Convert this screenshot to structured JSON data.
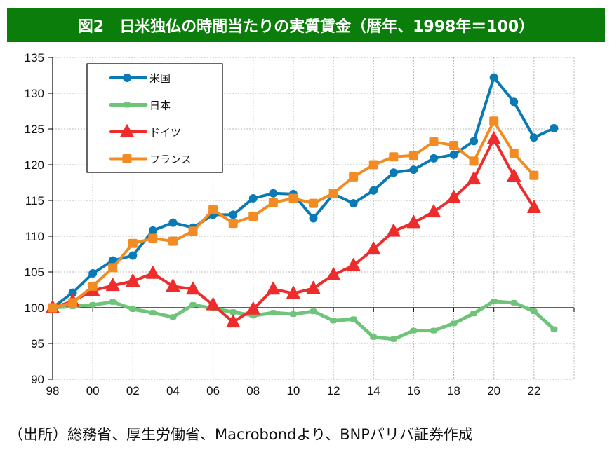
{
  "title": "図2　日米独仏の時間当たりの実質賃金（暦年、1998年＝100）",
  "source": "（出所）総務省、厚生労働省、Macrobondより、BNPパリバ証券作成",
  "colors": {
    "title_bg": "#0a7d0a",
    "us": "#0a7ab5",
    "japan": "#6fc47a",
    "germany": "#ee2c2c",
    "france": "#f28c22"
  },
  "chart_data": {
    "type": "line",
    "title": "図2　日米独仏の時間当たりの実質賃金（暦年、1998年＝100）",
    "xlabel": "",
    "ylabel": "",
    "xlim": [
      1998,
      2024
    ],
    "ylim": [
      90,
      135
    ],
    "grid": true,
    "legend_position": "top-left",
    "x_ticks": [
      "98",
      "00",
      "02",
      "04",
      "06",
      "08",
      "10",
      "12",
      "14",
      "16",
      "18",
      "20",
      "22"
    ],
    "y_ticks": [
      "90",
      "95",
      "100",
      "105",
      "110",
      "115",
      "120",
      "125",
      "130",
      "135"
    ],
    "x": [
      1998,
      1999,
      2000,
      2001,
      2002,
      2003,
      2004,
      2005,
      2006,
      2007,
      2008,
      2009,
      2010,
      2011,
      2012,
      2013,
      2014,
      2015,
      2016,
      2017,
      2018,
      2019,
      2020,
      2021,
      2022,
      2023
    ],
    "series": [
      {
        "name": "米国",
        "key": "us",
        "marker": "circle",
        "values": [
          100.0,
          102.1,
          104.8,
          106.6,
          107.3,
          110.8,
          111.9,
          111.2,
          113.0,
          113.0,
          115.3,
          116.0,
          115.9,
          112.5,
          115.9,
          114.6,
          116.4,
          118.9,
          119.3,
          120.9,
          121.4,
          123.3,
          132.2,
          128.8,
          123.8,
          125.1
        ]
      },
      {
        "name": "日本",
        "key": "japan",
        "marker": "bar",
        "values": [
          100.0,
          100.2,
          100.4,
          100.8,
          99.8,
          99.3,
          98.7,
          100.4,
          99.9,
          99.4,
          98.9,
          99.3,
          99.1,
          99.5,
          98.2,
          98.4,
          95.9,
          95.6,
          96.8,
          96.8,
          97.8,
          99.2,
          100.9,
          100.7,
          99.5,
          97.0
        ]
      },
      {
        "name": "ドイツ",
        "key": "germany",
        "marker": "triangle",
        "values": [
          100.0,
          100.9,
          102.4,
          103.1,
          103.7,
          104.8,
          103.0,
          102.6,
          100.4,
          98.0,
          99.8,
          102.6,
          102.0,
          102.7,
          104.6,
          105.9,
          108.2,
          110.7,
          111.9,
          113.4,
          115.4,
          118.0,
          123.6,
          118.4,
          114.0,
          null
        ]
      },
      {
        "name": "フランス",
        "key": "france",
        "marker": "square",
        "values": [
          100.0,
          100.7,
          103.0,
          105.6,
          109.0,
          109.7,
          109.3,
          110.7,
          113.7,
          111.8,
          112.8,
          114.7,
          115.3,
          114.6,
          116.0,
          118.3,
          120.0,
          121.1,
          121.3,
          123.2,
          122.7,
          120.5,
          126.1,
          121.6,
          118.5,
          null
        ]
      }
    ]
  }
}
